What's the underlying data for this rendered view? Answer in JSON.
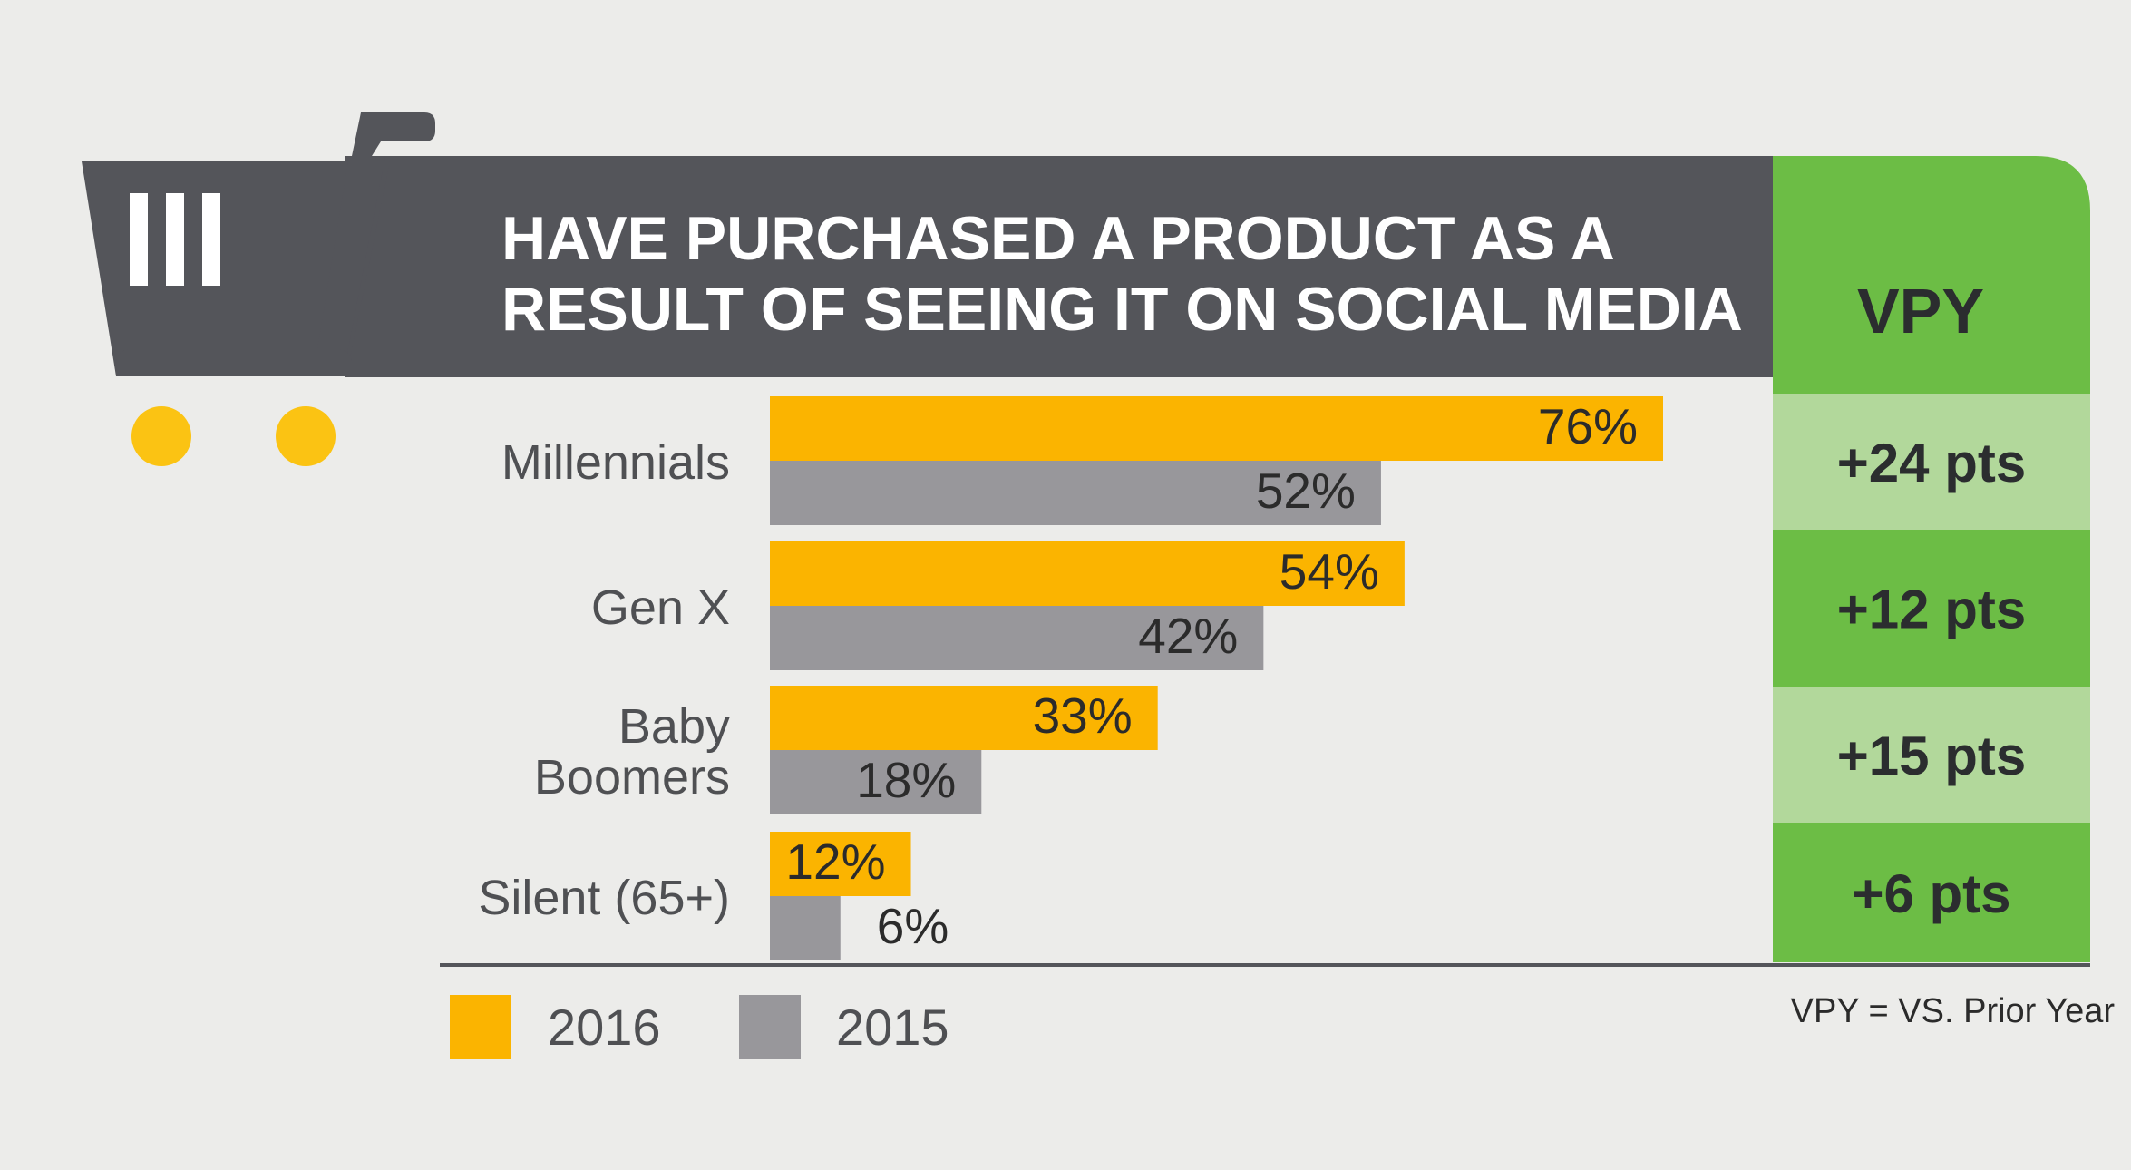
{
  "colors": {
    "background": "#ececea",
    "header_bar": "#54555a",
    "series_2016": "#fbb400",
    "series_2015": "#98979b",
    "vpy_dark": "#6cbd45",
    "vpy_light": "#b2d89b",
    "cart_wheels": "#fbc313"
  },
  "chart_data": {
    "type": "bar",
    "orientation": "horizontal",
    "title_lines": [
      "HAVE PURCHASED A PRODUCT AS A",
      "RESULT OF SEEING IT ON SOCIAL MEDIA"
    ],
    "categories": [
      [
        "Millennials"
      ],
      [
        "Gen X"
      ],
      [
        "Baby",
        "Boomers"
      ],
      [
        "Silent (65+)"
      ]
    ],
    "series": [
      {
        "name": "2016",
        "values": [
          76,
          54,
          33,
          12
        ],
        "labels": [
          "76%",
          "54%",
          "33%",
          "12%"
        ]
      },
      {
        "name": "2015",
        "values": [
          52,
          42,
          18,
          6
        ],
        "labels": [
          "52%",
          "42%",
          "18%",
          "6%"
        ]
      }
    ],
    "xlim": [
      0,
      85
    ],
    "vpy_header": "VPY",
    "vpy_values": [
      "+24 pts",
      "+12 pts",
      "+15 pts",
      "+6 pts"
    ],
    "legend": [
      {
        "label": "2016"
      },
      {
        "label": "2015"
      }
    ],
    "legend_position": "bottom-left",
    "footnote": "VPY = VS. Prior Year"
  }
}
